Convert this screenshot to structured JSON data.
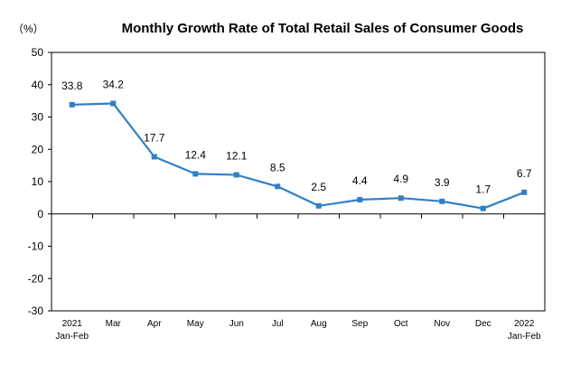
{
  "chart_data": {
    "type": "line",
    "title": "Monthly Growth Rate of Total Retail Sales of Consumer Goods",
    "unit_label": "（%）",
    "xlabel": "",
    "ylabel": "",
    "ylim": [
      -30,
      50
    ],
    "yticks": [
      -30,
      -20,
      -10,
      0,
      10,
      20,
      30,
      40,
      50
    ],
    "grid": false,
    "legend": "none",
    "categories": [
      [
        "2021",
        "Jan-Feb"
      ],
      [
        "Mar"
      ],
      [
        "Apr"
      ],
      [
        "May"
      ],
      [
        "Jun"
      ],
      [
        "Jul"
      ],
      [
        "Aug"
      ],
      [
        "Sep"
      ],
      [
        "Oct"
      ],
      [
        "Nov"
      ],
      [
        "Dec"
      ],
      [
        "2022",
        "Jan-Feb"
      ]
    ],
    "series": [
      {
        "values": [
          33.8,
          34.2,
          17.7,
          12.4,
          12.1,
          8.5,
          2.5,
          4.4,
          4.9,
          3.9,
          1.7,
          6.7
        ],
        "labels": [
          "33.8",
          "34.2",
          "17.7",
          "12.4",
          "12.1",
          "8.5",
          "2.5",
          "4.4",
          "4.9",
          "3.9",
          "1.7",
          "6.7"
        ],
        "color": "#2f7fc8"
      }
    ]
  }
}
